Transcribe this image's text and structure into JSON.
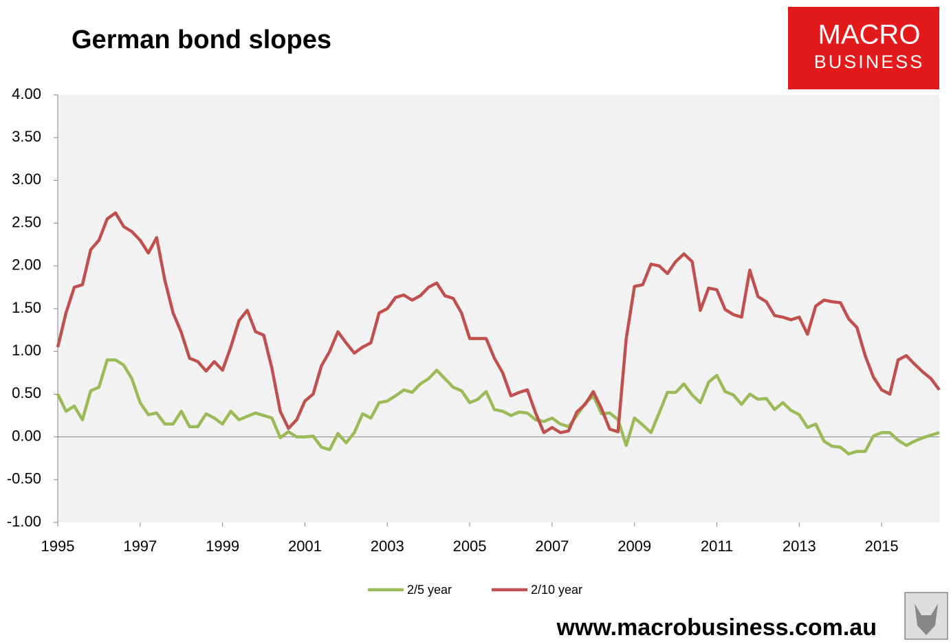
{
  "chart_data": {
    "type": "line",
    "title": "German bond slopes",
    "x": [
      1995,
      1995.2,
      1995.4,
      1995.6,
      1995.8,
      1996,
      1996.2,
      1996.4,
      1996.6,
      1996.8,
      1997,
      1997.2,
      1997.4,
      1997.6,
      1997.8,
      1998,
      1998.2,
      1998.4,
      1998.6,
      1998.8,
      1999,
      1999.2,
      1999.4,
      1999.6,
      1999.8,
      2000,
      2000.2,
      2000.4,
      2000.6,
      2000.8,
      2001,
      2001.2,
      2001.4,
      2001.6,
      2001.8,
      2002,
      2002.2,
      2002.4,
      2002.6,
      2002.8,
      2003,
      2003.2,
      2003.4,
      2003.6,
      2003.8,
      2004,
      2004.2,
      2004.4,
      2004.6,
      2004.8,
      2005,
      2005.2,
      2005.4,
      2005.6,
      2005.8,
      2006,
      2006.2,
      2006.4,
      2006.6,
      2006.8,
      2007,
      2007.2,
      2007.4,
      2007.6,
      2007.8,
      2008,
      2008.2,
      2008.4,
      2008.6,
      2008.8,
      2009,
      2009.2,
      2009.4,
      2009.6,
      2009.8,
      2010,
      2010.2,
      2010.4,
      2010.6,
      2010.8,
      2011,
      2011.2,
      2011.4,
      2011.6,
      2011.8,
      2012,
      2012.2,
      2012.4,
      2012.6,
      2012.8,
      2013,
      2013.2,
      2013.4,
      2013.6,
      2013.8,
      2014,
      2014.2,
      2014.4,
      2014.6,
      2014.8,
      2015,
      2015.2,
      2015.4,
      2015.6,
      2015.8,
      2016,
      2016.2,
      2016.4
    ],
    "series": [
      {
        "name": "2/5 year",
        "color": "#9bbb59",
        "values": [
          0.5,
          0.3,
          0.36,
          0.2,
          0.54,
          0.58,
          0.9,
          0.9,
          0.84,
          0.68,
          0.4,
          0.26,
          0.28,
          0.15,
          0.15,
          0.3,
          0.12,
          0.12,
          0.27,
          0.22,
          0.15,
          0.3,
          0.2,
          0.24,
          0.28,
          0.25,
          0.22,
          -0.01,
          0.06,
          0.0,
          0.0,
          0.01,
          -0.12,
          -0.15,
          0.04,
          -0.07,
          0.05,
          0.27,
          0.22,
          0.4,
          0.42,
          0.48,
          0.55,
          0.52,
          0.62,
          0.68,
          0.78,
          0.68,
          0.58,
          0.54,
          0.4,
          0.44,
          0.53,
          0.32,
          0.3,
          0.25,
          0.29,
          0.28,
          0.2,
          0.18,
          0.22,
          0.15,
          0.12,
          0.25,
          0.39,
          0.48,
          0.27,
          0.28,
          0.2,
          -0.1,
          0.22,
          0.14,
          0.05,
          0.28,
          0.52,
          0.52,
          0.62,
          0.49,
          0.4,
          0.64,
          0.72,
          0.53,
          0.49,
          0.38,
          0.5,
          0.44,
          0.45,
          0.32,
          0.4,
          0.31,
          0.26,
          0.11,
          0.15,
          -0.05,
          -0.11,
          -0.12,
          -0.2,
          -0.17,
          -0.17,
          0.01,
          0.05,
          0.05,
          -0.04,
          -0.1,
          -0.05,
          -0.01,
          0.02,
          0.05
        ]
      },
      {
        "name": "2/10 year",
        "color": "#c0504d",
        "values": [
          1.05,
          1.45,
          1.75,
          1.78,
          2.19,
          2.3,
          2.55,
          2.62,
          2.46,
          2.4,
          2.3,
          2.15,
          2.33,
          1.83,
          1.45,
          1.22,
          0.92,
          0.88,
          0.77,
          0.88,
          0.78,
          1.05,
          1.36,
          1.48,
          1.23,
          1.19,
          0.8,
          0.3,
          0.1,
          0.2,
          0.42,
          0.5,
          0.83,
          1.0,
          1.23,
          1.1,
          0.98,
          1.05,
          1.1,
          1.45,
          1.5,
          1.63,
          1.66,
          1.6,
          1.65,
          1.75,
          1.8,
          1.65,
          1.62,
          1.45,
          1.15,
          1.15,
          1.15,
          0.92,
          0.75,
          0.48,
          0.52,
          0.55,
          0.28,
          0.05,
          0.11,
          0.05,
          0.07,
          0.29,
          0.38,
          0.53,
          0.33,
          0.09,
          0.06,
          1.15,
          1.76,
          1.78,
          2.02,
          2.0,
          1.91,
          2.05,
          2.14,
          2.05,
          1.48,
          1.74,
          1.72,
          1.49,
          1.43,
          1.4,
          1.95,
          1.64,
          1.58,
          1.42,
          1.4,
          1.37,
          1.4,
          1.2,
          1.53,
          1.6,
          1.58,
          1.57,
          1.38,
          1.28,
          0.95,
          0.7,
          0.55,
          0.5,
          0.9,
          0.95,
          0.85,
          0.76,
          0.68,
          0.55
        ]
      }
    ],
    "xlim": [
      1995,
      2016.4
    ],
    "xticks": [
      1995,
      1997,
      1999,
      2001,
      2003,
      2005,
      2007,
      2009,
      2011,
      2013,
      2015
    ],
    "ylim": [
      -1,
      4
    ],
    "yticks": [
      {
        "value": 4,
        "label": "4.00"
      },
      {
        "value": 3.5,
        "label": "3.50"
      },
      {
        "value": 3,
        "label": "3.00"
      },
      {
        "value": 2.5,
        "label": "2.50"
      },
      {
        "value": 2,
        "label": "2.00"
      },
      {
        "value": 1.5,
        "label": "1.50"
      },
      {
        "value": 1,
        "label": "1.00"
      },
      {
        "value": 0.5,
        "label": "0.50"
      },
      {
        "value": 0,
        "label": "0.00"
      },
      {
        "value": -0.5,
        "label": "-0.50"
      },
      {
        "value": -1,
        "label": "-1.00"
      }
    ],
    "grid": false,
    "legend": "bottom"
  },
  "logo": {
    "line1": "MACRO",
    "line2": "BUSINESS"
  },
  "footer": "www.macrobusiness.com.au"
}
